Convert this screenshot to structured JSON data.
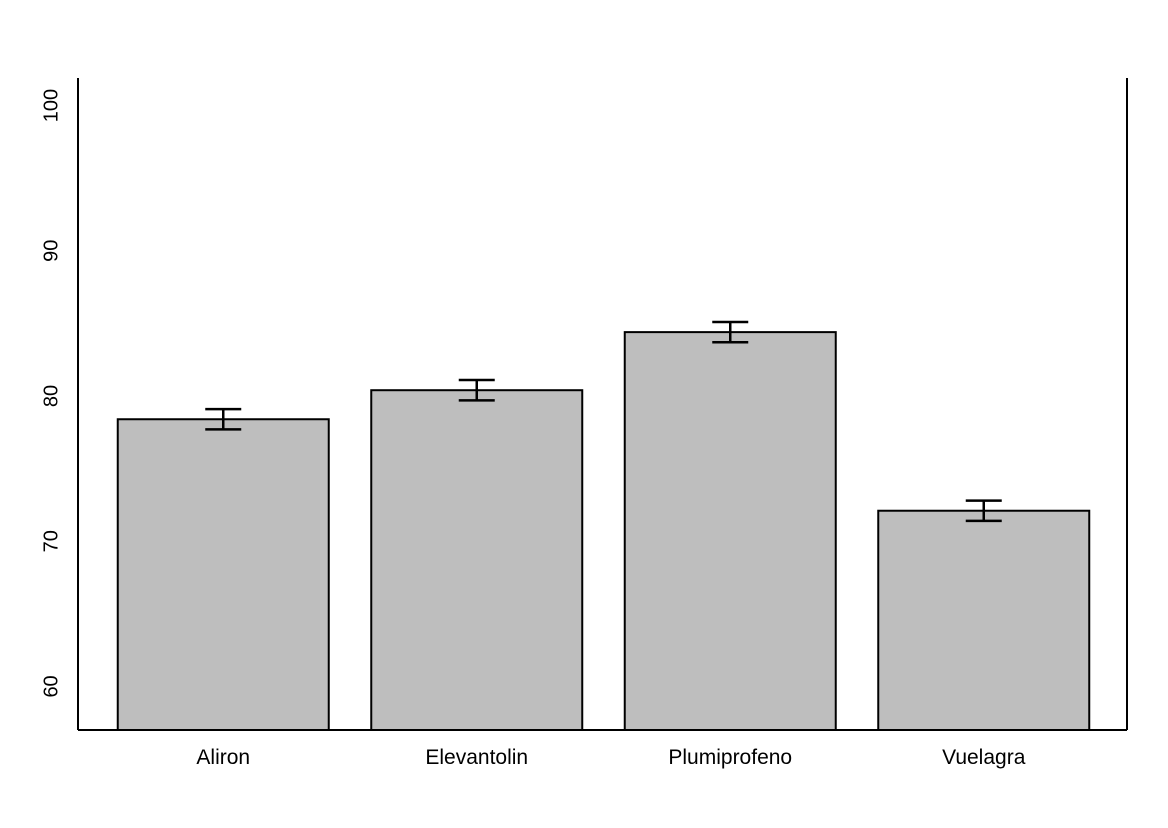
{
  "chart_data": {
    "type": "bar",
    "title": "",
    "xlabel": "",
    "ylabel": "",
    "categories": [
      "Aliron",
      "Elevantolin",
      "Plumiprofeno",
      "Vuelagra"
    ],
    "values": [
      78.4,
      80.4,
      84.4,
      72.1
    ],
    "error_bars": [
      {
        "lower": 77.7,
        "upper": 79.1
      },
      {
        "lower": 79.7,
        "upper": 81.1
      },
      {
        "lower": 83.7,
        "upper": 85.1
      },
      {
        "lower": 71.4,
        "upper": 72.8
      }
    ],
    "ylim": [
      57,
      101.9
    ],
    "yticks": [
      60,
      70,
      80,
      90,
      100
    ],
    "ytick_labels": [
      "60",
      "70",
      "80",
      "90",
      "100"
    ],
    "bar_color": "#bebebe",
    "edge_color": "#000000",
    "grid": false,
    "legend": "none"
  }
}
